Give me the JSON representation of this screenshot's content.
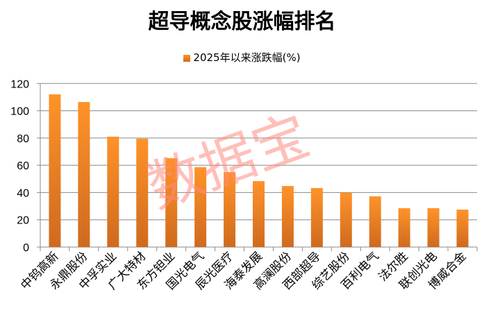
{
  "chart_data": {
    "type": "bar",
    "title": "超导概念股涨幅排名",
    "series": [
      {
        "name": "2025年以来涨跌幅(%)",
        "values": [
          112.0,
          106.4,
          81.0,
          79.5,
          65.2,
          58.6,
          55.0,
          48.4,
          44.8,
          43.3,
          39.9,
          37.2,
          28.5,
          28.5,
          27.5
        ]
      }
    ],
    "categories": [
      "中钨高新",
      "永鼎股份",
      "中孚实业",
      "广大特材",
      "东方钽业",
      "国光电气",
      "辰光医疗",
      "海泰发展",
      "高澜股份",
      "西部超导",
      "综艺股份",
      "百利电气",
      "法尔胜",
      "联创光电",
      "博威合金"
    ],
    "ylim": [
      0,
      120
    ],
    "yticks": [
      0,
      20,
      40,
      60,
      80,
      100,
      120
    ],
    "grid": true,
    "legend": "top",
    "colors": {
      "bar_top": "#ff9329",
      "bar_bottom": "#cf6a1e",
      "watermark": "#ff8a80"
    }
  },
  "watermark": "数据宝"
}
